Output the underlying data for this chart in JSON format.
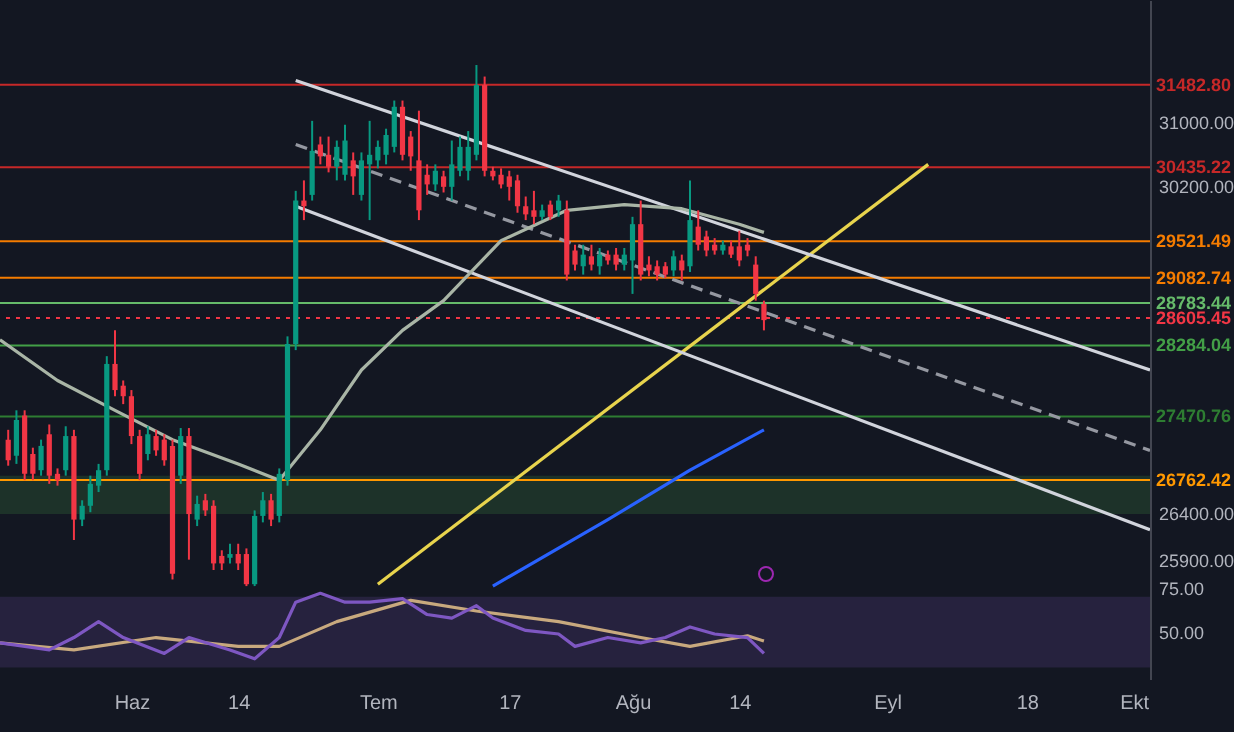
{
  "chart_data": [
    {
      "type": "candlestick",
      "log": true,
      "xlim": [
        "--05-16",
        "--10-03"
      ],
      "ylim": [
        25600,
        32600
      ],
      "xticks": [
        {
          "value": "--06-01",
          "label": "Haz"
        },
        {
          "value": "--06-14",
          "label": "14"
        },
        {
          "value": "--07-01",
          "label": "Tem"
        },
        {
          "value": "--07-17",
          "label": "17"
        },
        {
          "value": "--08-01",
          "label": "Ağu"
        },
        {
          "value": "--08-14",
          "label": "14"
        },
        {
          "value": "--09-01",
          "label": "Eyl"
        },
        {
          "value": "--09-18",
          "label": "18"
        },
        {
          "value": "--10-01",
          "label": "Ekt"
        }
      ],
      "yticks": [
        {
          "value": 31000,
          "label": "31000.00"
        },
        {
          "value": 30200,
          "label": "30200.00"
        },
        {
          "value": 26400,
          "label": "26400.00"
        },
        {
          "value": 25900,
          "label": "25900.00"
        }
      ],
      "x": [
        "--05-17",
        "--05-18",
        "--05-19",
        "--05-20",
        "--05-21",
        "--05-22",
        "--05-23",
        "--05-24",
        "--05-25",
        "--05-26",
        "--05-27",
        "--05-28",
        "--05-29",
        "--05-30",
        "--05-31",
        "--06-01",
        "--06-02",
        "--06-03",
        "--06-04",
        "--06-05",
        "--06-06",
        "--06-07",
        "--06-08",
        "--06-09",
        "--06-10",
        "--06-11",
        "--06-12",
        "--06-13",
        "--06-14",
        "--06-15",
        "--06-16",
        "--06-17",
        "--06-18",
        "--06-19",
        "--06-20",
        "--06-21",
        "--06-22",
        "--06-23",
        "--06-24",
        "--06-25",
        "--06-26",
        "--06-27",
        "--06-28",
        "--06-29",
        "--06-30",
        "--07-01",
        "--07-02",
        "--07-03",
        "--07-04",
        "--07-05",
        "--07-06",
        "--07-07",
        "--07-08",
        "--07-09",
        "--07-10",
        "--07-11",
        "--07-12",
        "--07-13",
        "--07-14",
        "--07-15",
        "--07-16",
        "--07-17",
        "--07-18",
        "--07-19",
        "--07-20",
        "--07-21",
        "--07-22",
        "--07-23",
        "--07-24",
        "--07-25",
        "--07-26",
        "--07-27",
        "--07-28",
        "--07-29",
        "--07-30",
        "--07-31",
        "--08-01",
        "--08-02",
        "--08-03",
        "--08-04",
        "--08-05",
        "--08-06",
        "--08-07",
        "--08-08",
        "--08-09",
        "--08-10",
        "--08-11",
        "--08-12",
        "--08-13",
        "--08-14",
        "--08-15",
        "--08-16",
        "--08-17"
      ],
      "ohlc": [
        [
          27210,
          27320,
          26920,
          26980
        ],
        [
          27030,
          27540,
          26940,
          27430
        ],
        [
          27480,
          27540,
          26760,
          26830
        ],
        [
          27050,
          27120,
          26760,
          26830
        ],
        [
          26870,
          27210,
          26810,
          27140
        ],
        [
          27270,
          27380,
          26720,
          26810
        ],
        [
          26830,
          26890,
          26700,
          26760
        ],
        [
          26870,
          27360,
          26810,
          27250
        ],
        [
          27250,
          27320,
          26110,
          26330
        ],
        [
          26330,
          26540,
          26260,
          26480
        ],
        [
          26480,
          26810,
          26410,
          26720
        ],
        [
          26700,
          26940,
          26630,
          26870
        ],
        [
          26870,
          28160,
          26810,
          28070
        ],
        [
          28070,
          28460,
          27700,
          27770
        ],
        [
          27820,
          27880,
          27610,
          27700
        ],
        [
          27700,
          27770,
          27160,
          27250
        ],
        [
          27250,
          27320,
          26760,
          26830
        ],
        [
          27050,
          27360,
          26980,
          27270
        ],
        [
          27250,
          27320,
          27030,
          27090
        ],
        [
          27210,
          27270,
          26920,
          26980
        ],
        [
          27140,
          27210,
          25690,
          25750
        ],
        [
          26810,
          27340,
          26720,
          27250
        ],
        [
          27250,
          27340,
          25900,
          26390
        ],
        [
          26330,
          26590,
          26260,
          26500
        ],
        [
          26540,
          26610,
          26370,
          26430
        ],
        [
          26480,
          26540,
          25790,
          25860
        ],
        [
          25940,
          26000,
          25790,
          25860
        ],
        [
          25920,
          26070,
          25860,
          25960
        ],
        [
          25960,
          26070,
          25790,
          25860
        ],
        [
          25960,
          26020,
          25620,
          25640
        ],
        [
          25640,
          26430,
          25620,
          26370
        ],
        [
          26370,
          26630,
          26300,
          26540
        ],
        [
          26540,
          26610,
          26260,
          26330
        ],
        [
          26370,
          26890,
          26300,
          26830
        ],
        [
          26760,
          28390,
          26700,
          28300
        ],
        [
          28300,
          30140,
          28230,
          30020
        ],
        [
          30020,
          30270,
          29780,
          29950
        ],
        [
          30090,
          31020,
          30020,
          30640
        ],
        [
          30720,
          30820,
          30470,
          30570
        ],
        [
          30590,
          30820,
          30370,
          30440
        ],
        [
          30440,
          30770,
          30270,
          30690
        ],
        [
          30340,
          30970,
          30270,
          30770
        ],
        [
          30520,
          30620,
          30090,
          30320
        ],
        [
          30090,
          30620,
          30020,
          30520
        ],
        [
          30470,
          31020,
          29780,
          30590
        ],
        [
          30520,
          30770,
          30420,
          30690
        ],
        [
          30590,
          30920,
          30470,
          30840
        ],
        [
          30690,
          31280,
          30620,
          31200
        ],
        [
          31200,
          31280,
          30520,
          30590
        ],
        [
          30820,
          30890,
          30390,
          30570
        ],
        [
          30520,
          31150,
          29780,
          29900
        ],
        [
          30340,
          30470,
          30090,
          30220
        ],
        [
          30220,
          30470,
          30140,
          30390
        ],
        [
          30320,
          30390,
          30120,
          30190
        ],
        [
          30190,
          30770,
          30020,
          30470
        ],
        [
          30390,
          30820,
          30320,
          30690
        ],
        [
          30390,
          30890,
          30270,
          30690
        ],
        [
          30590,
          31740,
          30520,
          31480
        ],
        [
          31480,
          31590,
          30320,
          30390
        ],
        [
          30390,
          30440,
          30270,
          30320
        ],
        [
          30340,
          30420,
          30170,
          30220
        ],
        [
          30320,
          30390,
          30020,
          30190
        ],
        [
          30270,
          30340,
          29870,
          29950
        ],
        [
          29950,
          30070,
          29780,
          29850
        ],
        [
          29900,
          30140,
          29730,
          29820
        ],
        [
          29820,
          29970,
          29780,
          29900
        ],
        [
          29970,
          30020,
          29780,
          29820
        ],
        [
          29900,
          30090,
          29820,
          30020
        ],
        [
          29900,
          30020,
          29050,
          29120
        ],
        [
          29410,
          29480,
          29170,
          29240
        ],
        [
          29220,
          29480,
          29120,
          29360
        ],
        [
          29340,
          29480,
          29170,
          29240
        ],
        [
          29220,
          29440,
          29120,
          29360
        ],
        [
          29360,
          29410,
          29240,
          29290
        ],
        [
          29360,
          29440,
          29170,
          29240
        ],
        [
          29240,
          29440,
          29170,
          29360
        ],
        [
          29290,
          29820,
          28890,
          29730
        ],
        [
          29730,
          30020,
          29050,
          29120
        ],
        [
          29240,
          29340,
          29100,
          29170
        ],
        [
          29220,
          29290,
          29050,
          29120
        ],
        [
          29220,
          29270,
          29080,
          29120
        ],
        [
          29170,
          29410,
          29100,
          29340
        ],
        [
          29290,
          29360,
          29050,
          29170
        ],
        [
          29220,
          30270,
          29150,
          29780
        ],
        [
          29700,
          29900,
          29410,
          29480
        ],
        [
          29580,
          29650,
          29340,
          29410
        ],
        [
          29480,
          29560,
          29360,
          29410
        ],
        [
          29410,
          29530,
          29360,
          29480
        ],
        [
          29460,
          29530,
          29320,
          29360
        ],
        [
          29460,
          29650,
          29220,
          29290
        ],
        [
          29480,
          29560,
          29340,
          29410
        ],
        [
          29240,
          29340,
          28810,
          28890
        ],
        [
          28770,
          28810,
          28460,
          28580
        ]
      ],
      "series": [
        {
          "type": "line",
          "color": "#a9b5a6",
          "x": [
            "--05-16",
            "--05-23",
            "--05-30",
            "--06-06",
            "--06-14",
            "--06-19",
            "--06-24",
            "--06-29",
            "--07-04",
            "--07-09",
            "--07-16",
            "--07-24",
            "--07-31",
            "--08-07",
            "--08-14",
            "--08-17"
          ],
          "values": [
            28350,
            27880,
            27540,
            27210,
            26940,
            26760,
            27320,
            28000,
            28460,
            28810,
            29530,
            29900,
            29970,
            29920,
            29730,
            29630
          ]
        },
        {
          "type": "line",
          "color": "#2962ff",
          "x": [
            "--07-15",
            "--07-29",
            "--08-08",
            "--08-17"
          ],
          "values": [
            25620,
            26330,
            26870,
            27320
          ]
        },
        {
          "type": "line",
          "color": "#d1d4dc",
          "x": [
            "--06-21",
            "--10-03"
          ],
          "values": [
            31540,
            28000
          ]
        },
        {
          "type": "line",
          "color": "#d1d4dc",
          "x": [
            "--06-21",
            "--10-03"
          ],
          "values": [
            29950,
            26220
          ]
        },
        {
          "type": "line",
          "color": "#9598a1",
          "line_style": "dashed",
          "x": [
            "--06-21",
            "--10-03"
          ],
          "values": [
            30720,
            27090
          ]
        },
        {
          "type": "line",
          "color": "#e8d44d",
          "x": [
            "--07-01",
            "--09-06"
          ],
          "values": [
            25640,
            30470
          ]
        }
      ],
      "bands": [
        {
          "axis": "y",
          "from": 26390,
          "to": 26810,
          "color": "#4caf50"
        }
      ],
      "ref_lines": [
        {
          "axis": "y",
          "value": 31482.8,
          "label": "31482.80",
          "color": "#c62828"
        },
        {
          "axis": "y",
          "value": 30435.22,
          "label": "30435.22",
          "color": "#c62828"
        },
        {
          "axis": "y",
          "value": 29521.49,
          "label": "29521.49",
          "color": "#f57c00"
        },
        {
          "axis": "y",
          "value": 29082.74,
          "label": "29082.74",
          "color": "#f57c00"
        },
        {
          "axis": "y",
          "value": 28783.44,
          "label": "28783.44",
          "color": "#66bb6a"
        },
        {
          "axis": "y",
          "value": 28605.45,
          "label": "28605.45",
          "color": "#f23645",
          "line_style": "dotted"
        },
        {
          "axis": "y",
          "value": 28284.04,
          "label": "28284.04",
          "color": "#43a047"
        },
        {
          "axis": "y",
          "value": 27470.76,
          "label": "27470.76",
          "color": "#2e7d32"
        },
        {
          "axis": "y",
          "value": 26762.42,
          "label": "26762.42",
          "color": "#ff9800"
        }
      ]
    },
    {
      "type": "line",
      "tick_labels": "y",
      "xlim": [
        "--05-16",
        "--10-03"
      ],
      "ylim": [
        23,
        75
      ],
      "yticks": [
        {
          "value": 50,
          "label": "50.00"
        },
        {
          "value": 75,
          "label": "75.00"
        }
      ],
      "bands": [
        {
          "axis": "y",
          "from": 30,
          "to": 70,
          "color": "#7e57c2"
        }
      ],
      "series": [
        {
          "color": "#7e57c2",
          "x": [
            "--05-16",
            "--05-22",
            "--05-25",
            "--05-28",
            "--05-31",
            "--06-05",
            "--06-08",
            "--06-13",
            "--06-16",
            "--06-19",
            "--06-21",
            "--06-24",
            "--06-27",
            "--06-30",
            "--07-04",
            "--07-07",
            "--07-10",
            "--07-13",
            "--07-15",
            "--07-19",
            "--07-23",
            "--07-25",
            "--07-29",
            "--08-02",
            "--08-05",
            "--08-08",
            "--08-11",
            "--08-15",
            "--08-17"
          ],
          "values": [
            44,
            40,
            47,
            56,
            47,
            38,
            47,
            40,
            35,
            47,
            67,
            72,
            67,
            67,
            69,
            60,
            58,
            65,
            58,
            51,
            49,
            42,
            47,
            44,
            47,
            53,
            49,
            47,
            38
          ]
        },
        {
          "color": "#c8a97e",
          "x": [
            "--05-16",
            "--05-25",
            "--06-04",
            "--06-14",
            "--06-19",
            "--06-26",
            "--07-05",
            "--07-13",
            "--07-23",
            "--08-02",
            "--08-08",
            "--08-15",
            "--08-17"
          ],
          "values": [
            44,
            40,
            47,
            42,
            42,
            56,
            68,
            62,
            56,
            47,
            42,
            48,
            45
          ]
        }
      ]
    }
  ]
}
